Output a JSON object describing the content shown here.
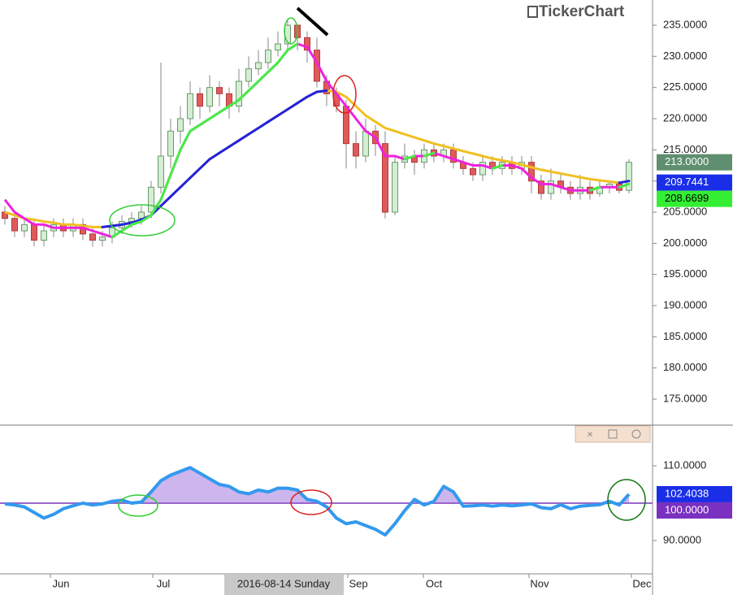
{
  "logo": "TickerChart",
  "crosshair_label": "2016-08-14 Sunday",
  "chart_data": [
    {
      "type": "candlestick",
      "xlim": [
        -0.5,
        66.42
      ],
      "ylim": [
        170.96,
        239.04
      ],
      "yticks": [
        {
          "value": 175,
          "label": "175.0000"
        },
        {
          "value": 180,
          "label": "180.0000"
        },
        {
          "value": 185,
          "label": "185.0000"
        },
        {
          "value": 190,
          "label": "190.0000"
        },
        {
          "value": 195,
          "label": "195.0000"
        },
        {
          "value": 200,
          "label": "200.0000"
        },
        {
          "value": 205,
          "label": "205.0000"
        },
        {
          "value": 210,
          "label": "210.0000"
        },
        {
          "value": 215,
          "label": "215.0000"
        },
        {
          "value": 220,
          "label": "220.0000"
        },
        {
          "value": 225,
          "label": "225.0000"
        },
        {
          "value": 230,
          "label": "230.0000"
        },
        {
          "value": 235,
          "label": "235.0000"
        }
      ],
      "up_color": "#d4eed4",
      "down_color": "#e05a5a",
      "open": [
        205,
        204,
        202,
        203,
        200.5,
        202,
        203,
        202,
        203,
        201.5,
        200.5,
        201,
        202.5,
        203.5,
        204,
        205,
        209,
        214,
        218,
        220,
        224,
        222,
        225,
        224,
        222,
        226,
        228,
        229,
        231,
        232,
        235,
        233,
        231,
        226,
        224,
        222,
        216,
        214,
        218,
        216,
        205,
        213,
        214,
        213,
        215,
        214,
        215,
        213,
        212,
        211,
        213,
        212,
        213,
        212,
        213,
        210,
        208,
        210,
        209,
        208,
        209,
        208,
        209,
        209.5,
        208.5
      ],
      "high": [
        206,
        205,
        204,
        204,
        203,
        204,
        204,
        204,
        204,
        202.5,
        202,
        203.5,
        204.5,
        205,
        206,
        210,
        229,
        220,
        222,
        226,
        225,
        227,
        226,
        225,
        228,
        230,
        231,
        233,
        234,
        236,
        235,
        234,
        233,
        227,
        225,
        223,
        218,
        220,
        219,
        218,
        214,
        216,
        215,
        216,
        216,
        216,
        216,
        214,
        213,
        214,
        214,
        214,
        214,
        214,
        214,
        211,
        212,
        211,
        210,
        211,
        210,
        210,
        210,
        210,
        213.5
      ],
      "low": [
        203,
        201,
        201,
        199.5,
        199.5,
        201,
        201,
        201,
        200.5,
        199.5,
        199.5,
        200,
        201.5,
        202.5,
        203,
        204,
        208,
        212,
        216,
        219,
        220,
        221,
        222,
        220,
        221,
        225,
        227,
        228,
        230,
        231,
        231,
        229,
        225,
        222,
        221,
        212,
        212,
        213,
        214,
        204,
        204.5,
        212,
        211,
        212,
        213,
        213,
        212,
        211,
        210,
        210,
        211,
        211,
        211,
        211,
        208,
        207,
        207,
        208,
        207,
        207,
        207,
        207.5,
        208,
        208,
        208
      ],
      "close": [
        204,
        202,
        203,
        200.5,
        202,
        203,
        202,
        203,
        201.5,
        200.5,
        201,
        202.5,
        203.5,
        204,
        205,
        209,
        214,
        218,
        220,
        224,
        222,
        225,
        224,
        222,
        226,
        228,
        229,
        231,
        232,
        235,
        233,
        231,
        226,
        224,
        222,
        216,
        214,
        218,
        216,
        205,
        213,
        214,
        213,
        215,
        214,
        215,
        213,
        212,
        211,
        213,
        212,
        213,
        212,
        213,
        210,
        208,
        210,
        209,
        208,
        209,
        208,
        209,
        209.5,
        208.5,
        213
      ],
      "lines": [
        {
          "color": "#f0c020",
          "rising_color": "#2222dd",
          "values": [
            205,
            204.5,
            204,
            203.8,
            203.5,
            203.3,
            203,
            203,
            202.8,
            202.6,
            202.6,
            202.8,
            203,
            203.3,
            203.8,
            204.5,
            206,
            207.5,
            209,
            210.5,
            212,
            213.5,
            214.5,
            215.5,
            216.5,
            217.5,
            218.5,
            219.5,
            220.5,
            221.5,
            222.5,
            223.5,
            224.3,
            224.5,
            224.3,
            223.5,
            222,
            220.5,
            219.5,
            218.5,
            218,
            217.5,
            217,
            216.5,
            216,
            215.6,
            215.2,
            214.8,
            214.4,
            214,
            213.6,
            213.3,
            213,
            212.6,
            212.2,
            211.8,
            211.5,
            211.2,
            210.9,
            210.6,
            210.3,
            210.1,
            209.9,
            209.7,
            210
          ]
        },
        {
          "color": "#ee22dd",
          "rising_color": "#44ee44",
          "values": [
            207,
            205,
            204,
            203,
            203,
            202.5,
            202.5,
            202.5,
            202.5,
            202,
            201.5,
            201,
            202,
            203,
            203.5,
            204.5,
            207,
            211,
            215,
            218,
            219,
            220,
            221,
            222,
            223,
            224.5,
            226,
            227.5,
            229,
            231,
            232,
            231.5,
            229,
            226,
            224,
            222,
            220,
            218,
            217,
            214,
            214,
            213.5,
            214,
            214,
            214.5,
            214,
            213.5,
            213,
            212.5,
            212.5,
            212,
            212.5,
            212.5,
            212,
            210.5,
            209.5,
            209.5,
            209,
            208.5,
            208.5,
            208.5,
            209,
            209,
            209,
            209.5
          ]
        }
      ],
      "badges": [
        {
          "label": "213.0000",
          "value": 213,
          "color": "#5f8f6f"
        },
        {
          "label": "209.7441",
          "value": 209.7441,
          "color": "#1a2ee8"
        },
        {
          "label": "208.6699",
          "value": 208.6699,
          "color": "#33ee33"
        }
      ],
      "xticks": [
        {
          "value": 4.67,
          "label": "Jun"
        },
        {
          "value": 15.17,
          "label": "Jul"
        },
        {
          "value": 35.17,
          "label": "Sep"
        },
        {
          "value": 42.92,
          "label": "Oct"
        },
        {
          "value": 53.75,
          "label": "Nov"
        },
        {
          "value": 64.25,
          "label": "Dec"
        }
      ]
    },
    {
      "type": "oscillator",
      "xlim": [
        -0.5,
        66.42
      ],
      "ylim": [
        81.3,
        116.1
      ],
      "baseline": 100,
      "baseline_color": "#9966cc",
      "fill_color": "#cdb5ee",
      "color": "#3399ee",
      "yticks": [
        {
          "value": 90,
          "label": "90.0000"
        },
        {
          "value": 110,
          "label": "110.0000"
        }
      ],
      "values": [
        99.8,
        99.5,
        99,
        97.5,
        96,
        97,
        98.5,
        99.3,
        100,
        99.5,
        99.8,
        100.5,
        100.8,
        100,
        100.3,
        103,
        106,
        107.5,
        108.5,
        109.5,
        108,
        106.5,
        105,
        104.5,
        103,
        102.5,
        103.5,
        103,
        104,
        104,
        103.5,
        101,
        100.5,
        99,
        96,
        94.5,
        95,
        94,
        93,
        91.5,
        94.5,
        98,
        101,
        99.5,
        100.5,
        104.5,
        103,
        99.2,
        99.3,
        99.5,
        99.2,
        99.5,
        99.3,
        99.5,
        99.8,
        98.8,
        98.5,
        99.6,
        98.5,
        99.2,
        99.4,
        99.6,
        100.5,
        99.5,
        102.4
      ],
      "badges": [
        {
          "label": "102.4038",
          "value": 102.4038,
          "color": "#1a2ee8"
        },
        {
          "label": "100.0000",
          "value": 100,
          "color": "#7a30c0"
        }
      ]
    }
  ]
}
